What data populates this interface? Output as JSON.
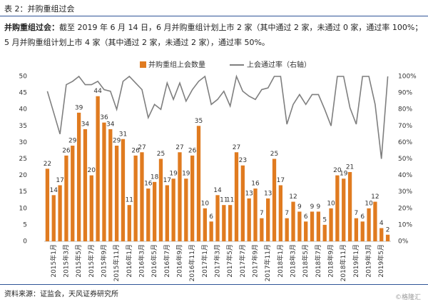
{
  "chart_data": {
    "type": "bar_line",
    "title": "表 2：并购重组过会",
    "subtitle_lead": "并购重组过会：",
    "subtitle": "截至 2019 年 6 月 14 日，6 月并购重组计划上市 2 家（其中通过 2 家，未通过 0 家，通过率 100%；5 月并购重组计划上市 4 家（其中通过 2 家，未通过 2 家），通过率 50%。",
    "source": "资料来源：证监会，天风证券研究所",
    "watermark": "©格隆汇",
    "categories": [
      null,
      "2015年1月",
      null,
      "2015年3月",
      null,
      "2015年5月",
      null,
      "2015年7月",
      null,
      "2015年9月",
      null,
      "2015年11月",
      null,
      "2016年1月",
      null,
      "2016年3月",
      null,
      "2016年5月",
      null,
      "2016年7月",
      null,
      "2016年9月",
      null,
      "2016年11月",
      null,
      "2017年1月",
      null,
      "2017年3月",
      null,
      "2017年5月",
      null,
      "2017年7月",
      null,
      "2017年9月",
      null,
      "2017年11月",
      null,
      "2018年1月",
      null,
      "2018年3月",
      null,
      "2018年5月",
      null,
      "2018年7月",
      null,
      "2018年9月",
      null,
      "2018年11月",
      null,
      "2019年1月",
      null,
      "2019年3月",
      null,
      "2019年5月",
      null
    ],
    "series": [
      {
        "name": "并购重组上会数量",
        "color": "#e07b20",
        "values": [
          22,
          14,
          17,
          26,
          29,
          39,
          34,
          20,
          44,
          36,
          34,
          29,
          31,
          11,
          26,
          27,
          16,
          18,
          25,
          17,
          19,
          27,
          19,
          26,
          35,
          10,
          6,
          14,
          11,
          11,
          27,
          23,
          13,
          16,
          7,
          13,
          25,
          17,
          7,
          12,
          9,
          6,
          9,
          9,
          5,
          10,
          20,
          19,
          21,
          7,
          6,
          10,
          12,
          4,
          2
        ]
      },
      {
        "name": "上会通过率（右轴）",
        "color": "#7f7f7f",
        "axis": "y2",
        "values": [
          91,
          78,
          65,
          95,
          97,
          100,
          95,
          95,
          97,
          92,
          91,
          80,
          97,
          100,
          96,
          92,
          75,
          83,
          80,
          96,
          86,
          96,
          85,
          92,
          97,
          100,
          83,
          86,
          91,
          82,
          100,
          91,
          88,
          86,
          92,
          93,
          100,
          100,
          71,
          83,
          89,
          83,
          89,
          89,
          80,
          70,
          100,
          100,
          81,
          71,
          100,
          100,
          83,
          50,
          100
        ]
      }
    ],
    "ylim": [
      0,
      50
    ],
    "yticks": [
      0,
      5,
      10,
      15,
      20,
      25,
      30,
      35,
      40,
      45,
      50
    ],
    "y2lim": [
      0,
      100
    ],
    "y2ticks": [
      {
        "value": 0,
        "label": "0%"
      },
      {
        "value": 10,
        "label": "10%"
      },
      {
        "value": 20,
        "label": "20%"
      },
      {
        "value": 30,
        "label": "30%"
      },
      {
        "value": 40,
        "label": "40%"
      },
      {
        "value": 50,
        "label": "50%"
      },
      {
        "value": 60,
        "label": "60%"
      },
      {
        "value": 70,
        "label": "70%"
      },
      {
        "value": 80,
        "label": "80%"
      },
      {
        "value": 90,
        "label": "90%"
      },
      {
        "value": 100,
        "label": "100%"
      }
    ],
    "legend": "top"
  }
}
